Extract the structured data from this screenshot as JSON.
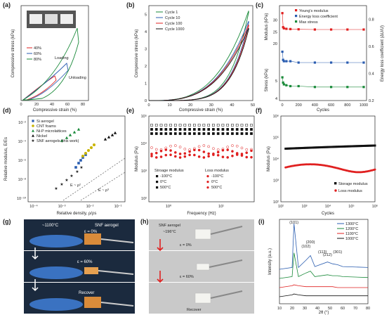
{
  "panels": {
    "a": {
      "label": "(a)",
      "xlabel": "Compressive strain (%)",
      "ylabel": "Compressive stress (kPa)",
      "legend": [
        "40%",
        "60%",
        "80%"
      ],
      "ann_loading": "Loading",
      "ann_unloading": "Unloading",
      "xticks": [
        "0",
        "20",
        "40",
        "60",
        "80"
      ]
    },
    "b": {
      "label": "(b)",
      "xlabel": "Compressive strain (%)",
      "ylabel": "Compressive stress (kPa)",
      "legend": [
        "Cycle 1",
        "Cycle 10",
        "Cycle 100",
        "Cycle 1000"
      ],
      "xticks": [
        "0",
        "10",
        "20",
        "30",
        "40",
        "50"
      ],
      "yticks": [
        "0",
        "1",
        "2",
        "3",
        "4",
        "5"
      ]
    },
    "c": {
      "label": "(c)",
      "xlabel": "Cycles",
      "ylabel_left_top": "Modulus (kPa)",
      "ylabel_left_bottom": "Stress (kPa)",
      "ylabel_right": "Energy loss coefficient (ΔU/U)",
      "legend": [
        "Young's modulus",
        "Energy loss coefficient",
        "Max stress"
      ],
      "xticks": [
        "0",
        "200",
        "400",
        "600",
        "800",
        "1000"
      ],
      "yticks_top": [
        "20",
        "25",
        "30"
      ],
      "yticks_bottom": [
        "4",
        "5"
      ],
      "yticks_right": [
        "0.2",
        "0.4",
        "0.6",
        "0.8"
      ]
    },
    "d": {
      "label": "(d)",
      "xlabel": "Relative density, ρ/ρs",
      "ylabel": "Relative modulus, E/Es",
      "legend": [
        "Si aerogel",
        "CNT foams",
        "Ni-P microlattices",
        "Nickel",
        "SNF aerogels (this work)"
      ],
      "xticks": [
        "10⁻⁴",
        "10⁻³",
        "10⁻²",
        "10⁻¹"
      ],
      "yticks": [
        "10⁻¹⁰",
        "10⁻⁸",
        "10⁻⁶",
        "10⁻⁴",
        "10⁻²"
      ],
      "ann1": "E ~ ρ²",
      "ann2": "E ~ ρ³"
    },
    "e": {
      "label": "(e)",
      "xlabel": "Frequency (Hz)",
      "ylabel": "Modulus (Pa)",
      "yticks": [
        "10²",
        "10³",
        "10⁴",
        "10⁵"
      ],
      "xticks": [
        "10⁰",
        "10¹"
      ],
      "storage_title": "Stroage modulus",
      "loss_title": "Loss modulus",
      "temps": [
        "-100°C",
        "0°C",
        "500°C"
      ]
    },
    "f": {
      "label": "(f)",
      "xlabel": "Cycles",
      "ylabel": "Modulus (Pa)",
      "yticks": [
        "10²",
        "10³",
        "10⁴",
        "10⁵",
        "10⁶"
      ],
      "xticks": [
        "10²",
        "10³",
        "10⁴",
        "10⁵",
        "10⁶"
      ],
      "legend": [
        "Storage modulus",
        "Loss modulus"
      ]
    },
    "g": {
      "label": "(g)",
      "temp": "~1100°C",
      "material": "SNF aerogel",
      "strain0": "ε = 0%",
      "strain60": "ε = 60%",
      "recover": "Recover"
    },
    "h": {
      "label": "(h)",
      "material": "SNF aerogel",
      "temp": "~196°C",
      "strain0": "ε = 0%",
      "strain60": "ε = 60%",
      "recover": "Recover"
    },
    "i": {
      "label": "(i)",
      "xlabel": "2θ (°)",
      "ylabel": "Intensity (a.u.)",
      "legend": [
        "1300°C",
        "1200°C",
        "1100°C",
        "1000°C"
      ],
      "peaks": [
        "(101)",
        "(102)",
        "(200)",
        "(113)",
        "(212)",
        "(301)"
      ],
      "xticks": [
        "10",
        "20",
        "30",
        "40",
        "50",
        "60",
        "70",
        "80"
      ]
    }
  },
  "chart_data": [
    {
      "panel": "b",
      "type": "line",
      "x": [
        0,
        10,
        20,
        30,
        40,
        50
      ],
      "series": [
        {
          "name": "Cycle 1",
          "values": [
            0,
            0.2,
            0.6,
            1.3,
            2.8,
            5.2
          ]
        },
        {
          "name": "Cycle 10",
          "values": [
            0,
            0.15,
            0.5,
            1.1,
            2.4,
            4.6
          ]
        },
        {
          "name": "Cycle 100",
          "values": [
            0,
            0.12,
            0.45,
            1.0,
            2.2,
            4.4
          ]
        },
        {
          "name": "Cycle 1000",
          "values": [
            0,
            0.1,
            0.4,
            0.9,
            2.0,
            4.2
          ]
        }
      ],
      "xlim": [
        0,
        50
      ],
      "ylim": [
        0,
        5.5
      ]
    },
    {
      "panel": "c",
      "type": "scatter",
      "x": [
        1,
        10,
        20,
        50,
        100,
        200,
        400,
        600,
        800,
        1000
      ],
      "series": [
        {
          "name": "Young's modulus",
          "values": [
            33,
            27,
            26.5,
            26.3,
            26.2,
            26.1,
            26,
            26,
            26,
            26
          ]
        },
        {
          "name": "Energy loss coefficient",
          "values": [
            0.56,
            0.5,
            0.49,
            0.49,
            0.49,
            0.48,
            0.48,
            0.48,
            0.48,
            0.48
          ]
        },
        {
          "name": "Max stress",
          "values": [
            5.2,
            4.9,
            4.8,
            4.75,
            4.7,
            4.7,
            4.65,
            4.65,
            4.65,
            4.65
          ]
        }
      ],
      "xlim": [
        0,
        1000
      ]
    },
    {
      "panel": "f",
      "type": "scatter",
      "x": [
        150,
        1000,
        10000,
        100000,
        1000000
      ],
      "series": [
        {
          "name": "Storage modulus",
          "values": [
            30000,
            34000,
            36000,
            40000,
            42000
          ]
        },
        {
          "name": "Loss modulus",
          "values": [
            4000,
            4500,
            5000,
            6000,
            5000
          ]
        }
      ],
      "xlim": [
        100,
        1000000
      ],
      "ylim": [
        100,
        1000000
      ],
      "scale": "log"
    },
    {
      "panel": "i",
      "type": "line",
      "x": [
        10,
        20,
        21.5,
        25,
        31,
        34.5,
        38,
        48,
        52,
        56,
        60,
        80
      ],
      "series": [
        {
          "name": "1300°C",
          "values": [
            3,
            3.2,
            8,
            3.2,
            4,
            4.5,
            3.3,
            3.8,
            3.6,
            3.5,
            3.3,
            3.2
          ]
        },
        {
          "name": "1200°C",
          "values": [
            2,
            2.2,
            4.8,
            2.2,
            2.6,
            2.8,
            2.2,
            2.4,
            2.3,
            2.3,
            2.2,
            2.1
          ]
        },
        {
          "name": "1100°C",
          "values": [
            1,
            1.2,
            1.3,
            1.2,
            1.1,
            1.1,
            1.1,
            1.1,
            1.1,
            1.0,
            1.0,
            1.0
          ]
        },
        {
          "name": "1000°C",
          "values": [
            0,
            0.2,
            0.3,
            0.2,
            0.1,
            0.1,
            0.1,
            0.1,
            0.1,
            0.1,
            0.1,
            0.1
          ]
        }
      ],
      "xlim": [
        10,
        80
      ]
    }
  ],
  "colors": {
    "red": "#e02020",
    "blue": "#2a5db0",
    "green": "#1a8a3a",
    "black": "#111111",
    "purple": "#6b4aa0",
    "yellow": "#c8b400"
  }
}
